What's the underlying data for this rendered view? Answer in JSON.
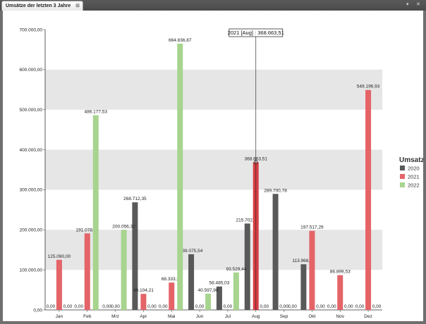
{
  "tab": {
    "title": "Umsätze der letzten 3 Jahre"
  },
  "icons": {
    "tab_close": "close-icon",
    "window_menu": "chevron-down-icon",
    "window_close": "close-icon"
  },
  "chart_data": {
    "type": "bar",
    "title": "",
    "xlabel": "",
    "ylabel": "",
    "ylim": [
      0,
      700000
    ],
    "yticks": [
      0,
      100000,
      200000,
      300000,
      400000,
      500000,
      600000,
      700000
    ],
    "ytick_labels": [
      "0,00",
      "100.000,00",
      "200.000,00",
      "300.000,00",
      "400.000,00",
      "500.000,00",
      "600.000,00",
      "700.000,00"
    ],
    "grid": "alternating horizontal bands",
    "legend_title": "Umsatz",
    "legend_position": "right",
    "categories": [
      "Jan",
      "Feb",
      "Mrz",
      "Apr",
      "Mai",
      "Jun",
      "Jul",
      "Aug",
      "Sep",
      "Okt",
      "Nov",
      "Dez"
    ],
    "series": [
      {
        "name": "2020",
        "color": "#595959",
        "values": [
          0,
          0,
          0,
          268712.35,
          0,
          139075.54,
          58485.03,
          215702.15,
          289700.78,
          113968.47,
          0,
          0
        ],
        "labels": [
          "0,00",
          "0,00",
          "0,00",
          "268.712,35",
          "0,00",
          "139.075,54",
          "58.485,03",
          "215.702,15",
          "289.700,78",
          "113.968,47",
          "0,00",
          "0,00"
        ]
      },
      {
        "name": "2021",
        "color": "#e46468",
        "values": [
          125090.0,
          191078.03,
          0,
          40104.21,
          68333.38,
          0,
          0,
          368663.51,
          0,
          197517.29,
          86899.53,
          549196.93
        ],
        "labels": [
          "125.090,00",
          "191.078,03",
          "0,00",
          "40.104,21",
          "68.333,38",
          "0,00",
          "0,00",
          "368.663,51",
          "0,00",
          "197.517,29",
          "86.899,53",
          "549.196,93"
        ]
      },
      {
        "name": "2022",
        "color": "#a7d48e",
        "values": [
          0,
          486177.53,
          200056.32,
          0,
          664836.87,
          40597.9,
          93529.44,
          0,
          0,
          0,
          0,
          0
        ],
        "labels": [
          "0,00",
          "486.177,53",
          "200.056,32",
          "0,00",
          "664.836,87",
          "40.597,90",
          "93.529,44",
          "0,00",
          "0,00",
          "0,00",
          "0,00",
          "0,00"
        ]
      }
    ],
    "tooltip": {
      "text": "2021 [Aug] : 368.663,51",
      "series": "2021",
      "category": "Aug",
      "value": 368663.51
    }
  }
}
